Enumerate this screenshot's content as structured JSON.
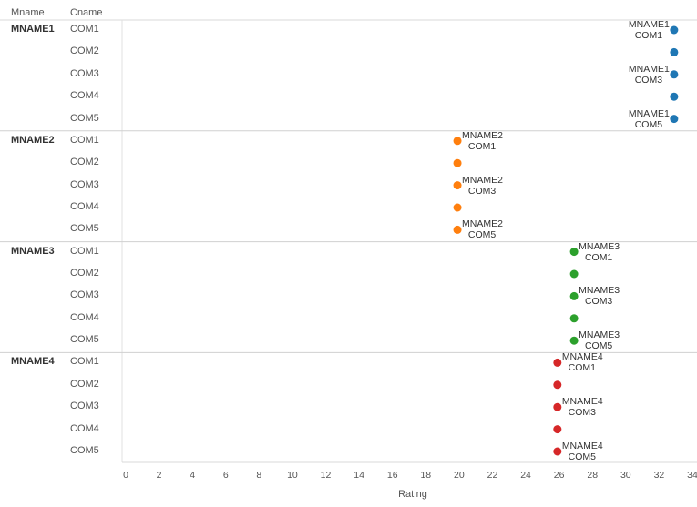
{
  "chart_data": {
    "type": "scatter",
    "orientation": "horizontal dot plot grouped by Mname and Cname",
    "row_headers": [
      "Mname",
      "Cname"
    ],
    "xlabel": "Rating",
    "xlim": [
      0,
      34
    ],
    "x_ticks": [
      "0",
      "2",
      "4",
      "6",
      "8",
      "10",
      "12",
      "14",
      "16",
      "18",
      "20",
      "22",
      "24",
      "26",
      "28",
      "30",
      "32",
      "34"
    ],
    "groups": [
      {
        "mname": "MNAME1",
        "color": "#1f77b4",
        "points": [
          {
            "cname": "COM1",
            "value": 32.9,
            "label": [
              "MNAME1",
              "COM1"
            ]
          },
          {
            "cname": "COM2",
            "value": 32.9,
            "label": null
          },
          {
            "cname": "COM3",
            "value": 32.9,
            "label": [
              "MNAME1",
              "COM3"
            ]
          },
          {
            "cname": "COM4",
            "value": 32.9,
            "label": null
          },
          {
            "cname": "COM5",
            "value": 32.9,
            "label": [
              "MNAME1",
              "COM5"
            ]
          }
        ]
      },
      {
        "mname": "MNAME2",
        "color": "#ff7f0e",
        "points": [
          {
            "cname": "COM1",
            "value": 19.9,
            "label": [
              "MNAME2",
              "COM1"
            ]
          },
          {
            "cname": "COM2",
            "value": 19.9,
            "label": null
          },
          {
            "cname": "COM3",
            "value": 19.9,
            "label": [
              "MNAME2",
              "COM3"
            ]
          },
          {
            "cname": "COM4",
            "value": 19.9,
            "label": null
          },
          {
            "cname": "COM5",
            "value": 19.9,
            "label": [
              "MNAME2",
              "COM5"
            ]
          }
        ]
      },
      {
        "mname": "MNAME3",
        "color": "#2ca02c",
        "points": [
          {
            "cname": "COM1",
            "value": 26.9,
            "label": [
              "MNAME3",
              "COM1"
            ]
          },
          {
            "cname": "COM2",
            "value": 26.9,
            "label": null
          },
          {
            "cname": "COM3",
            "value": 26.9,
            "label": [
              "MNAME3",
              "COM3"
            ]
          },
          {
            "cname": "COM4",
            "value": 26.9,
            "label": null
          },
          {
            "cname": "COM5",
            "value": 26.9,
            "label": [
              "MNAME3",
              "COM5"
            ]
          }
        ]
      },
      {
        "mname": "MNAME4",
        "color": "#d62728",
        "points": [
          {
            "cname": "COM1",
            "value": 25.9,
            "label": [
              "MNAME4",
              "COM1"
            ]
          },
          {
            "cname": "COM2",
            "value": 25.9,
            "label": null
          },
          {
            "cname": "COM3",
            "value": 25.9,
            "label": [
              "MNAME4",
              "COM3"
            ]
          },
          {
            "cname": "COM4",
            "value": 25.9,
            "label": null
          },
          {
            "cname": "COM5",
            "value": 25.9,
            "label": [
              "MNAME4",
              "COM5"
            ]
          }
        ]
      }
    ],
    "grid": false,
    "legend": "none"
  }
}
